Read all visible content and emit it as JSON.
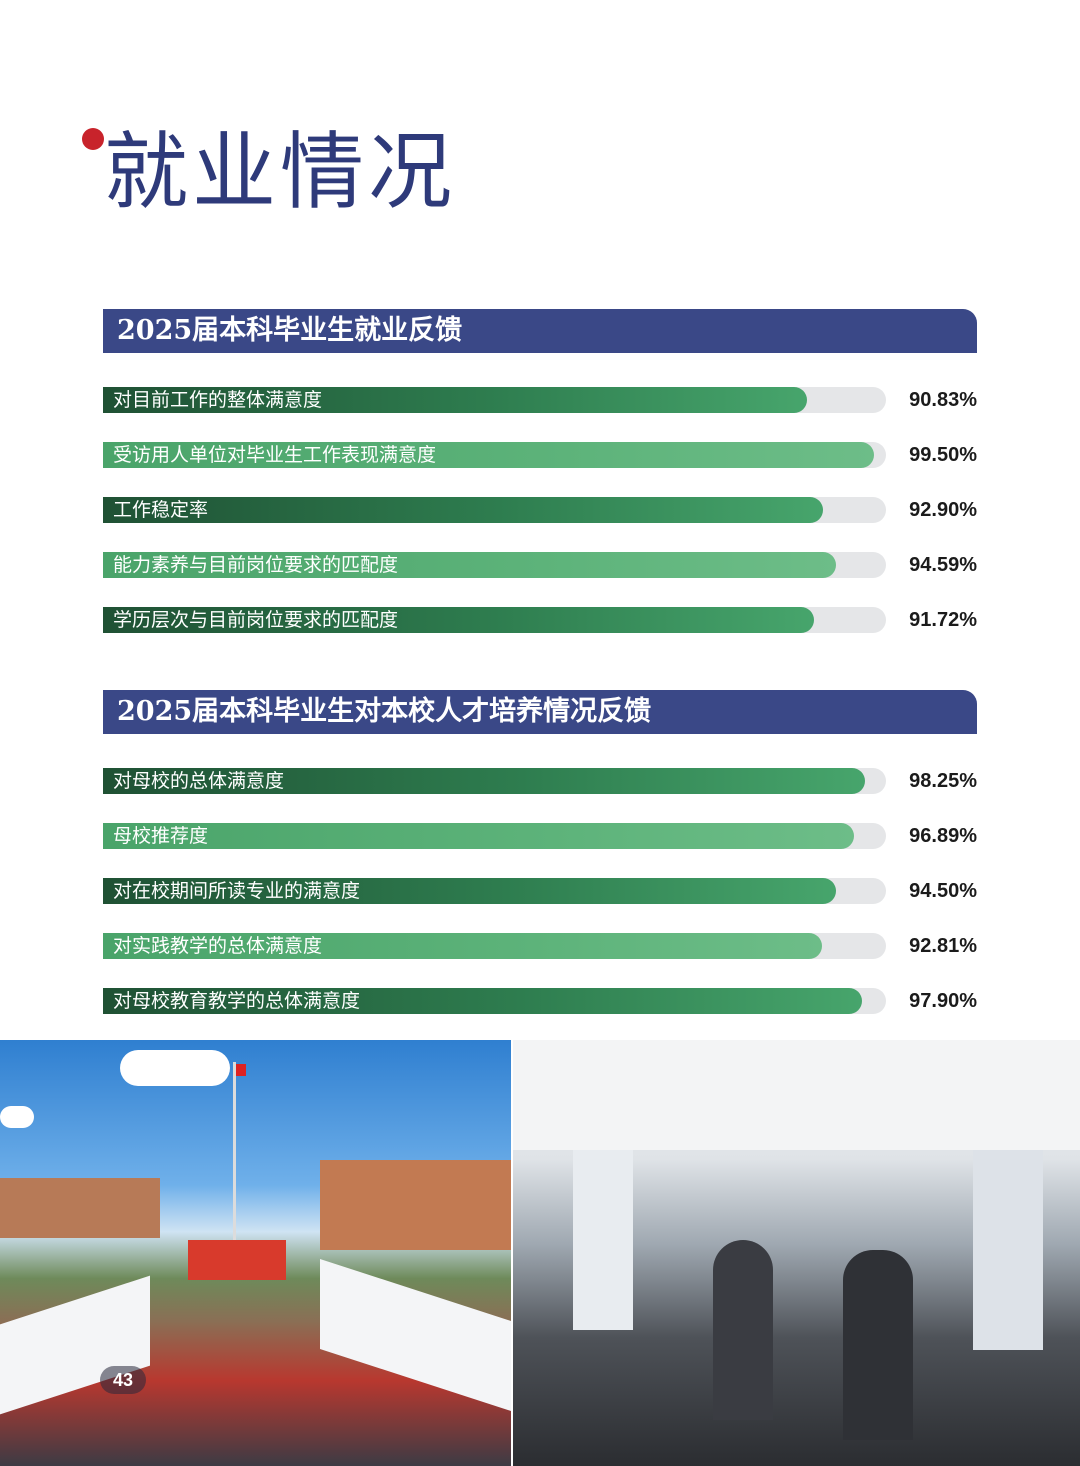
{
  "page": {
    "title": "就业情况",
    "page_number": "43"
  },
  "sections": [
    {
      "heading": "2025届本科毕业生就业反馈",
      "items": [
        {
          "label": "对目前工作的整体满意度",
          "value": "90.83%",
          "pct": 90.83,
          "tone": "dark"
        },
        {
          "label": "受访用人单位对毕业生工作表现满意度",
          "value": "99.50%",
          "pct": 99.5,
          "tone": "light"
        },
        {
          "label": "工作稳定率",
          "value": "92.90%",
          "pct": 92.9,
          "tone": "dark"
        },
        {
          "label": "能力素养与目前岗位要求的匹配度",
          "value": "94.59%",
          "pct": 94.59,
          "tone": "light"
        },
        {
          "label": "学历层次与目前岗位要求的匹配度",
          "value": "91.72%",
          "pct": 91.72,
          "tone": "dark"
        }
      ]
    },
    {
      "heading": "2025届本科毕业生对本校人才培养情况反馈",
      "items": [
        {
          "label": "对母校的总体满意度",
          "value": "98.25%",
          "pct": 98.25,
          "tone": "dark"
        },
        {
          "label": "母校推荐度",
          "value": "96.89%",
          "pct": 96.89,
          "tone": "light"
        },
        {
          "label": "对在校期间所读专业的满意度",
          "value": "94.50%",
          "pct": 94.5,
          "tone": "dark"
        },
        {
          "label": "对实践教学的总体满意度",
          "value": "92.81%",
          "pct": 92.81,
          "tone": "light"
        },
        {
          "label": "对母校教育教学的总体满意度",
          "value": "97.90%",
          "pct": 97.9,
          "tone": "dark"
        }
      ]
    }
  ],
  "colors": {
    "heading_bg": "#3a4887",
    "title": "#2e3a7a",
    "bar_dark": "#2e7d4f",
    "bar_light": "#5db37a",
    "track": "#e5e6e8"
  }
}
